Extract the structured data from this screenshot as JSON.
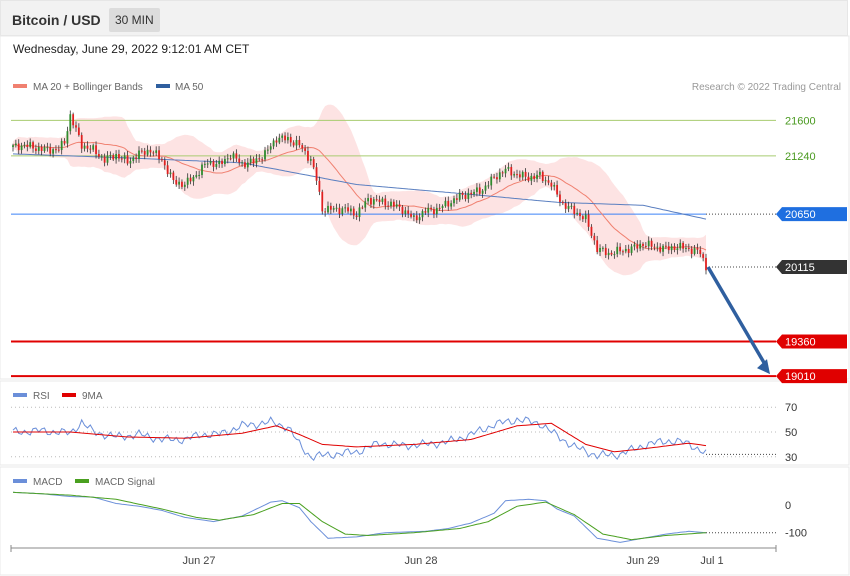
{
  "header": {
    "title": "Bitcoin / USD",
    "timeframe": "30 MIN"
  },
  "timestamp": "Wednesday, June 29, 2022 9:12:01 AM CET",
  "copyright": "Research © 2022 Trading Central",
  "colors": {
    "up": "#2e8b2e",
    "down": "#e02020",
    "ma20": "#f08070",
    "ma50": "#5a7fc0",
    "band_fill": "#fde0e0",
    "support": "#e00000",
    "pivot": "#3b82f6",
    "resistance": "#a8cc70",
    "rsi": "#6b8fd9",
    "rsi_ma": "#e00000",
    "macd": "#6b8fd9",
    "macd_signal": "#4aa020",
    "arrow": "#2f5f9f"
  },
  "chart_data": [
    {
      "type": "candlestick",
      "title": "",
      "legend": [
        {
          "name": "MA 20 + Bollinger Bands",
          "color": "#f08070"
        },
        {
          "name": "MA 50",
          "color": "#2f5f9f"
        }
      ],
      "ylim": [
        18950,
        22100
      ],
      "x_labels": [
        "Jun 27",
        "Jun 28",
        "Jun 29",
        "Jul 1"
      ],
      "levels": [
        {
          "value": 21600,
          "label": "21600",
          "kind": "resistance"
        },
        {
          "value": 21240,
          "label": "21240",
          "kind": "resistance"
        },
        {
          "value": 20650,
          "label": "20650",
          "kind": "pivot"
        },
        {
          "value": 20115,
          "label": "20115",
          "kind": "last"
        },
        {
          "value": 19360,
          "label": "19360",
          "kind": "support"
        },
        {
          "value": 19010,
          "label": "19010",
          "kind": "support"
        }
      ],
      "anchors": [
        [
          0,
          21330
        ],
        [
          4,
          21350
        ],
        [
          8,
          21320
        ],
        [
          12,
          21300
        ],
        [
          16,
          21310
        ],
        [
          18,
          21380
        ],
        [
          20,
          21650
        ],
        [
          22,
          21500
        ],
        [
          24,
          21350
        ],
        [
          28,
          21300
        ],
        [
          32,
          21200
        ],
        [
          36,
          21250
        ],
        [
          40,
          21180
        ],
        [
          44,
          21260
        ],
        [
          48,
          21300
        ],
        [
          52,
          21200
        ],
        [
          56,
          20980
        ],
        [
          60,
          20950
        ],
        [
          64,
          21050
        ],
        [
          68,
          21180
        ],
        [
          72,
          21150
        ],
        [
          76,
          21250
        ],
        [
          80,
          21160
        ],
        [
          84,
          21180
        ],
        [
          88,
          21260
        ],
        [
          92,
          21420
        ],
        [
          96,
          21410
        ],
        [
          100,
          21350
        ],
        [
          104,
          21200
        ],
        [
          106,
          21000
        ],
        [
          108,
          20700
        ],
        [
          112,
          20700
        ],
        [
          116,
          20700
        ],
        [
          120,
          20650
        ],
        [
          124,
          20800
        ],
        [
          128,
          20780
        ],
        [
          132,
          20750
        ],
        [
          136,
          20700
        ],
        [
          140,
          20600
        ],
        [
          144,
          20680
        ],
        [
          148,
          20700
        ],
        [
          152,
          20760
        ],
        [
          156,
          20830
        ],
        [
          160,
          20860
        ],
        [
          164,
          20900
        ],
        [
          168,
          21020
        ],
        [
          172,
          21100
        ],
        [
          176,
          21050
        ],
        [
          180,
          21020
        ],
        [
          184,
          21040
        ],
        [
          188,
          20950
        ],
        [
          192,
          20750
        ],
        [
          196,
          20680
        ],
        [
          200,
          20600
        ],
        [
          204,
          20300
        ],
        [
          208,
          20250
        ],
        [
          212,
          20280
        ],
        [
          216,
          20300
        ],
        [
          220,
          20350
        ],
        [
          224,
          20320
        ],
        [
          228,
          20300
        ],
        [
          232,
          20320
        ],
        [
          236,
          20300
        ],
        [
          240,
          20260
        ],
        [
          242,
          20115
        ]
      ],
      "ma50": [
        [
          0,
          21260
        ],
        [
          40,
          21220
        ],
        [
          80,
          21170
        ],
        [
          120,
          20950
        ],
        [
          160,
          20850
        ],
        [
          190,
          20770
        ],
        [
          220,
          20740
        ],
        [
          242,
          20600
        ]
      ]
    },
    {
      "type": "line",
      "title": "",
      "series": [
        {
          "name": "RSI"
        },
        {
          "name": "9MA"
        }
      ],
      "ylim": [
        25,
        75
      ],
      "reference_lines": [
        70,
        50,
        30
      ],
      "points": [
        [
          0,
          50
        ],
        [
          10,
          51
        ],
        [
          20,
          49
        ],
        [
          24,
          58
        ],
        [
          28,
          50
        ],
        [
          36,
          46
        ],
        [
          44,
          48
        ],
        [
          52,
          44
        ],
        [
          60,
          44
        ],
        [
          66,
          48
        ],
        [
          72,
          48
        ],
        [
          80,
          55
        ],
        [
          90,
          58
        ],
        [
          96,
          54
        ],
        [
          100,
          40
        ],
        [
          104,
          30
        ],
        [
          112,
          32
        ],
        [
          120,
          34
        ],
        [
          128,
          41
        ],
        [
          136,
          39
        ],
        [
          144,
          40
        ],
        [
          152,
          42
        ],
        [
          160,
          48
        ],
        [
          168,
          56
        ],
        [
          176,
          60
        ],
        [
          184,
          57
        ],
        [
          188,
          50
        ],
        [
          196,
          38
        ],
        [
          204,
          31
        ],
        [
          212,
          32
        ],
        [
          220,
          39
        ],
        [
          228,
          43
        ],
        [
          236,
          41
        ],
        [
          242,
          32
        ]
      ],
      "ma_points": [
        [
          0,
          50
        ],
        [
          20,
          50
        ],
        [
          40,
          46
        ],
        [
          60,
          45
        ],
        [
          80,
          49
        ],
        [
          92,
          55
        ],
        [
          100,
          48
        ],
        [
          108,
          40
        ],
        [
          120,
          38
        ],
        [
          140,
          40
        ],
        [
          160,
          44
        ],
        [
          176,
          55
        ],
        [
          188,
          57
        ],
        [
          200,
          40
        ],
        [
          210,
          34
        ],
        [
          222,
          37
        ],
        [
          236,
          41
        ],
        [
          242,
          39
        ]
      ]
    },
    {
      "type": "line",
      "title": "",
      "series": [
        {
          "name": "MACD"
        },
        {
          "name": "MACD Signal"
        }
      ],
      "ylim": [
        -155,
        75
      ],
      "tick_labels": [
        "0",
        "-100"
      ],
      "ticks": [
        0,
        -100
      ],
      "points": [
        [
          0,
          45
        ],
        [
          10,
          40
        ],
        [
          20,
          30
        ],
        [
          28,
          28
        ],
        [
          36,
          5
        ],
        [
          44,
          -5
        ],
        [
          52,
          -20
        ],
        [
          60,
          -45
        ],
        [
          70,
          -60
        ],
        [
          80,
          -40
        ],
        [
          90,
          10
        ],
        [
          94,
          15
        ],
        [
          100,
          -10
        ],
        [
          104,
          -60
        ],
        [
          110,
          -120
        ],
        [
          120,
          -115
        ],
        [
          130,
          -100
        ],
        [
          144,
          -95
        ],
        [
          152,
          -85
        ],
        [
          160,
          -65
        ],
        [
          168,
          -30
        ],
        [
          172,
          15
        ],
        [
          180,
          20
        ],
        [
          186,
          15
        ],
        [
          190,
          -15
        ],
        [
          196,
          -40
        ],
        [
          204,
          -120
        ],
        [
          212,
          -135
        ],
        [
          220,
          -120
        ],
        [
          228,
          -105
        ],
        [
          236,
          -95
        ],
        [
          242,
          -100
        ]
      ],
      "signal_points": [
        [
          0,
          45
        ],
        [
          20,
          35
        ],
        [
          36,
          20
        ],
        [
          52,
          -15
        ],
        [
          64,
          -45
        ],
        [
          72,
          -55
        ],
        [
          84,
          -35
        ],
        [
          94,
          5
        ],
        [
          100,
          5
        ],
        [
          108,
          -60
        ],
        [
          116,
          -105
        ],
        [
          124,
          -110
        ],
        [
          140,
          -100
        ],
        [
          156,
          -85
        ],
        [
          166,
          -60
        ],
        [
          176,
          -5
        ],
        [
          186,
          10
        ],
        [
          196,
          -35
        ],
        [
          206,
          -105
        ],
        [
          216,
          -125
        ],
        [
          228,
          -110
        ],
        [
          242,
          -100
        ]
      ]
    }
  ]
}
